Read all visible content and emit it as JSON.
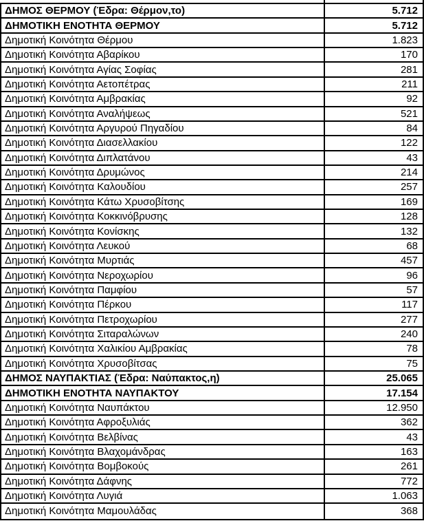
{
  "colors": {
    "background": "#ffffff",
    "border": "#000000",
    "text": "#000000"
  },
  "table": {
    "rows": [
      {
        "name": "ΔΗΜΟΣ ΘΕΡΜΟΥ (Έδρα: Θέρμον,το)",
        "value": "5.712",
        "bold": true
      },
      {
        "name": "ΔΗΜΟΤΙΚΗ ΕΝΟΤΗΤΑ ΘΕΡΜΟΥ",
        "value": "5.712",
        "bold": true
      },
      {
        "name": "Δημοτική Κοινότητα Θέρμου",
        "value": "1.823",
        "bold": false
      },
      {
        "name": "Δημοτική Κοινότητα Αβαρίκου",
        "value": "170",
        "bold": false
      },
      {
        "name": "Δημοτική Κοινότητα Αγίας Σοφίας",
        "value": "281",
        "bold": false
      },
      {
        "name": "Δημοτική Κοινότητα Αετοπέτρας",
        "value": "211",
        "bold": false
      },
      {
        "name": "Δημοτική Κοινότητα Αμβρακίας",
        "value": "92",
        "bold": false
      },
      {
        "name": "Δημοτική Κοινότητα Αναλήψεως",
        "value": "521",
        "bold": false
      },
      {
        "name": "Δημοτική Κοινότητα Αργυρού Πηγαδίου",
        "value": "84",
        "bold": false
      },
      {
        "name": "Δημοτική Κοινότητα Διασελλακίου",
        "value": "122",
        "bold": false
      },
      {
        "name": "Δημοτική Κοινότητα Διπλατάνου",
        "value": "43",
        "bold": false
      },
      {
        "name": "Δημοτική Κοινότητα Δρυμώνος",
        "value": "214",
        "bold": false
      },
      {
        "name": "Δημοτική Κοινότητα Καλουδίου",
        "value": "257",
        "bold": false
      },
      {
        "name": "Δημοτική Κοινότητα Κάτω Χρυσοβίτσης",
        "value": "169",
        "bold": false
      },
      {
        "name": "Δημοτική Κοινότητα Κοκκινόβρυσης",
        "value": "128",
        "bold": false
      },
      {
        "name": "Δημοτική Κοινότητα Κονίσκης",
        "value": "132",
        "bold": false
      },
      {
        "name": "Δημοτική Κοινότητα Λευκού",
        "value": "68",
        "bold": false
      },
      {
        "name": "Δημοτική Κοινότητα Μυρτιάς",
        "value": "457",
        "bold": false
      },
      {
        "name": "Δημοτική Κοινότητα Νεροχωρίου",
        "value": "96",
        "bold": false
      },
      {
        "name": "Δημοτική Κοινότητα Παμφίου",
        "value": "57",
        "bold": false
      },
      {
        "name": "Δημοτική Κοινότητα Πέρκου",
        "value": "117",
        "bold": false
      },
      {
        "name": "Δημοτική Κοινότητα Πετροχωρίου",
        "value": "277",
        "bold": false
      },
      {
        "name": "Δημοτική Κοινότητα Σιταραλώνων",
        "value": "240",
        "bold": false
      },
      {
        "name": "Δημοτική Κοινότητα Χαλικίου Αμβρακίας",
        "value": "78",
        "bold": false
      },
      {
        "name": "Δημοτική Κοινότητα Χρυσοβίτσας",
        "value": "75",
        "bold": false
      },
      {
        "name": "ΔΗΜΟΣ ΝΑΥΠΑΚΤΙΑΣ (Έδρα: Ναύπακτος,η)",
        "value": "25.065",
        "bold": true
      },
      {
        "name": "ΔΗΜΟΤΙΚΗ ΕΝΟΤΗΤΑ ΝΑΥΠΑΚΤΟΥ",
        "value": "17.154",
        "bold": true
      },
      {
        "name": "Δημοτική Κοινότητα Ναυπάκτου",
        "value": "12.950",
        "bold": false
      },
      {
        "name": "Δημοτική Κοινότητα Αφροξυλιάς",
        "value": "362",
        "bold": false
      },
      {
        "name": "Δημοτική Κοινότητα Βελβίνας",
        "value": "43",
        "bold": false
      },
      {
        "name": "Δημοτική Κοινότητα Βλαχομάνδρας",
        "value": "163",
        "bold": false
      },
      {
        "name": "Δημοτική Κοινότητα Βομβοκούς",
        "value": "261",
        "bold": false
      },
      {
        "name": "Δημοτική Κοινότητα Δάφνης",
        "value": "772",
        "bold": false
      },
      {
        "name": "Δημοτική Κοινότητα Λυγιά",
        "value": "1.063",
        "bold": false
      },
      {
        "name": "Δημοτική Κοινότητα Μαμουλάδας",
        "value": "368",
        "bold": false
      }
    ]
  }
}
